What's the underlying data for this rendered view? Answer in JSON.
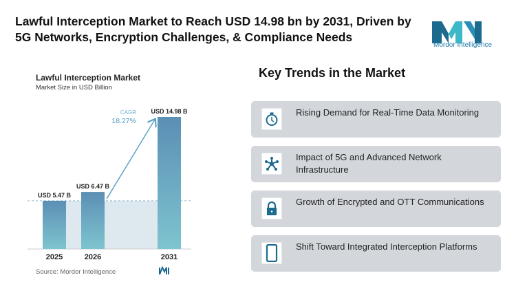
{
  "header": {
    "title": "Lawful Interception Market to Reach USD 14.98 bn by 2031, Driven by 5G Networks, Encryption Challenges, & Compliance Needs",
    "logo_text": "Mordor Intelligence"
  },
  "chart_data": {
    "type": "bar",
    "title": "Lawful Interception Market",
    "subtitle": "Market Size in USD Billion",
    "categories": [
      "2025",
      "2026",
      "2031"
    ],
    "values": [
      5.47,
      6.47,
      14.98
    ],
    "data_labels": [
      "USD 5.47 B",
      "USD 6.47 B",
      "USD 14.98 B"
    ],
    "annotation": {
      "label": "CAGR",
      "value": "18.27%"
    },
    "source": "Source: Mordor Intelligence",
    "colors": {
      "bar_top": "#5b8fb5",
      "bar_bottom": "#7ec4cf",
      "shade": "#dde8ef"
    }
  },
  "trends": {
    "heading": "Key Trends in the Market",
    "items": [
      {
        "label": "Rising Demand for Real-Time Data Monitoring",
        "icon": "stopwatch-icon"
      },
      {
        "label": "Impact of 5G and Advanced Network Infrastructure",
        "icon": "network-icon"
      },
      {
        "label": "Growth of Encrypted and OTT Communications",
        "icon": "lock-icon"
      },
      {
        "label": "Shift Toward Integrated Interception Platforms",
        "icon": "mobile-icon"
      }
    ]
  },
  "colors": {
    "accent": "#1d6a8f",
    "card": "#d3d7dc"
  }
}
